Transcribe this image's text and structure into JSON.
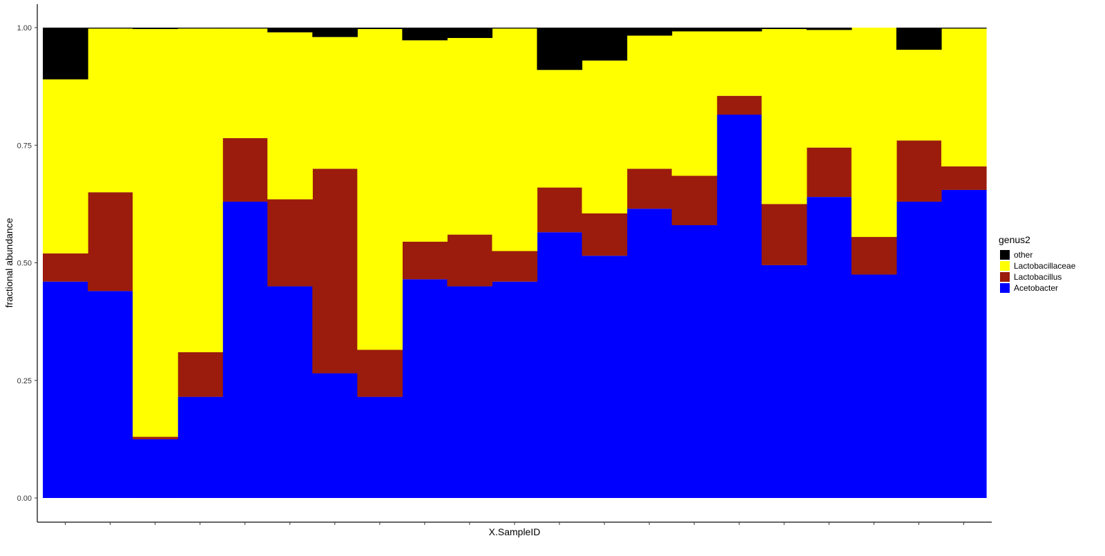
{
  "chart_data": {
    "type": "bar",
    "stacked": true,
    "xlabel": "X.SampleID",
    "ylabel": "fractional abundance",
    "ylim": [
      0,
      1
    ],
    "yticks": [
      0,
      0.25,
      0.5,
      0.75,
      1
    ],
    "ytick_labels": [
      "0.00",
      "0.25",
      "0.50",
      "0.75",
      "1.00"
    ],
    "n_bars": 21,
    "grid": false,
    "legend": {
      "title": "genus2",
      "position": "right",
      "entries": [
        {
          "label": "other",
          "color": "#000000"
        },
        {
          "label": "Lactobacillaceae",
          "color": "#ffff00"
        },
        {
          "label": "Lactobacillus",
          "color": "#9b1c0c"
        },
        {
          "label": "Acetobacter",
          "color": "#0000ff"
        }
      ]
    },
    "series": [
      {
        "name": "Acetobacter",
        "color": "#0000ff",
        "values": [
          0.46,
          0.44,
          0.125,
          0.215,
          0.63,
          0.45,
          0.265,
          0.215,
          0.465,
          0.45,
          0.46,
          0.565,
          0.515,
          0.615,
          0.58,
          0.815,
          0.495,
          0.64,
          0.475,
          0.63,
          0.655
        ]
      },
      {
        "name": "Lactobacillus",
        "color": "#9b1c0c",
        "values": [
          0.06,
          0.21,
          0.005,
          0.095,
          0.135,
          0.185,
          0.435,
          0.1,
          0.08,
          0.11,
          0.065,
          0.095,
          0.09,
          0.085,
          0.105,
          0.04,
          0.13,
          0.105,
          0.08,
          0.13,
          0.05
        ]
      },
      {
        "name": "Lactobacillaceae",
        "color": "#ffff00",
        "values": [
          0.37,
          0.348,
          0.867,
          0.688,
          0.233,
          0.355,
          0.28,
          0.682,
          0.428,
          0.418,
          0.473,
          0.25,
          0.325,
          0.283,
          0.307,
          0.137,
          0.372,
          0.25,
          0.445,
          0.193,
          0.293
        ]
      },
      {
        "name": "other",
        "color": "#000000",
        "values": [
          0.11,
          0.002,
          0.003,
          0.002,
          0.002,
          0.01,
          0.02,
          0.003,
          0.027,
          0.022,
          0.002,
          0.09,
          0.07,
          0.017,
          0.008,
          0.008,
          0.003,
          0.005,
          0.0,
          0.047,
          0.002
        ]
      }
    ]
  }
}
